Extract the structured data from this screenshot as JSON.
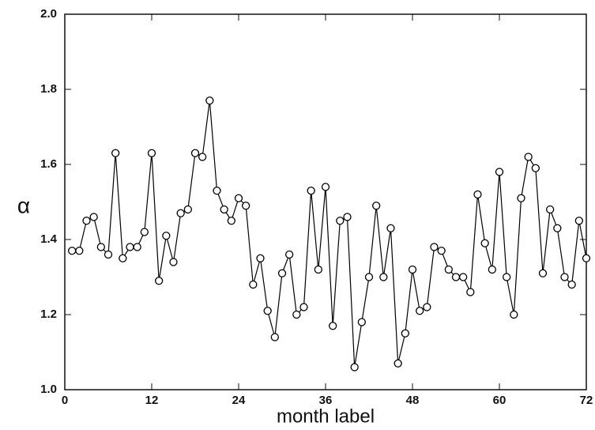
{
  "chart_data": {
    "type": "line",
    "xlabel": "month label",
    "ylabel": "α",
    "x": [
      1,
      2,
      3,
      4,
      5,
      6,
      7,
      8,
      9,
      10,
      11,
      12,
      13,
      14,
      15,
      16,
      17,
      18,
      19,
      20,
      21,
      22,
      23,
      24,
      25,
      26,
      27,
      28,
      29,
      30,
      31,
      32,
      33,
      34,
      35,
      36,
      37,
      38,
      39,
      40,
      41,
      42,
      43,
      44,
      45,
      46,
      47,
      48,
      49,
      50,
      51,
      52,
      53,
      54,
      55,
      56,
      57,
      58,
      59,
      60,
      61,
      62,
      63,
      64,
      65,
      66,
      67,
      68,
      69,
      70,
      71,
      72
    ],
    "series": [
      {
        "color": "#000000",
        "values": [
          1.37,
          1.37,
          1.45,
          1.46,
          1.38,
          1.36,
          1.63,
          1.35,
          1.38,
          1.38,
          1.42,
          1.63,
          1.29,
          1.41,
          1.34,
          1.47,
          1.48,
          1.63,
          1.62,
          1.77,
          1.53,
          1.48,
          1.45,
          1.51,
          1.49,
          1.28,
          1.35,
          1.21,
          1.14,
          1.31,
          1.36,
          1.2,
          1.22,
          1.53,
          1.32,
          1.54,
          1.17,
          1.45,
          1.46,
          1.06,
          1.18,
          1.3,
          1.49,
          1.3,
          1.43,
          1.07,
          1.15,
          1.32,
          1.21,
          1.22,
          1.38,
          1.37,
          1.32,
          1.3,
          1.3,
          1.26,
          1.52,
          1.39,
          1.32,
          1.58,
          1.3,
          1.2,
          1.51,
          1.62,
          1.59,
          1.31,
          1.48,
          1.43,
          1.3,
          1.28,
          1.45,
          1.35
        ]
      }
    ],
    "xlim": [
      0,
      72
    ],
    "xticks": [
      0,
      12,
      24,
      36,
      48,
      60,
      72
    ],
    "ylim": [
      1.0,
      2.0
    ],
    "yticks": [
      {
        "value": 1.0,
        "label": "1.0"
      },
      1.2,
      1.4,
      1.6,
      1.8,
      {
        "value": 2.0,
        "label": "2.0"
      }
    ]
  }
}
